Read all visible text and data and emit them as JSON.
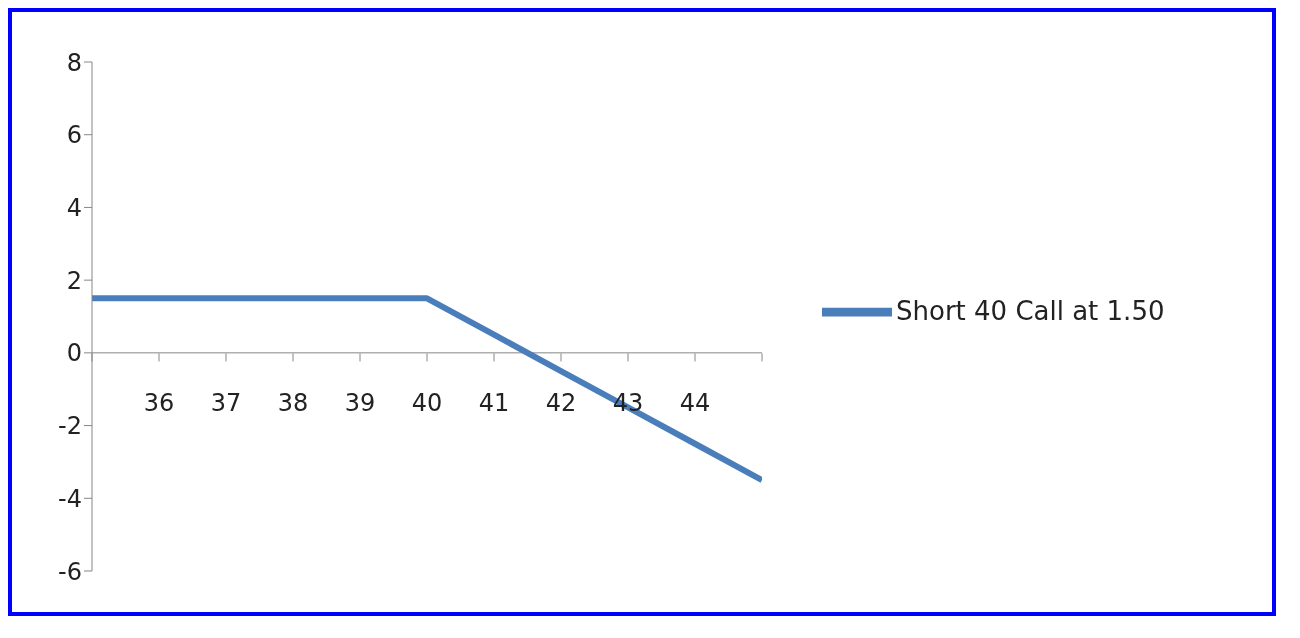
{
  "chart_data": {
    "type": "line",
    "x": [
      35,
      36,
      37,
      38,
      39,
      40,
      41,
      42,
      43,
      44,
      45
    ],
    "series": [
      {
        "name": "Short 40 Call at 1.50",
        "color": "#4a7ebb",
        "values": [
          1.5,
          1.5,
          1.5,
          1.5,
          1.5,
          1.5,
          0.5,
          -0.5,
          -1.5,
          -2.5,
          -3.5
        ]
      }
    ],
    "xlim": [
      35,
      45
    ],
    "xticks": [
      {
        "value": 35,
        "label": null
      },
      36,
      37,
      38,
      39,
      40,
      41,
      42,
      43,
      44,
      {
        "value": 45,
        "label": null
      }
    ],
    "ylim": [
      -6,
      8
    ],
    "yticks": [
      -6,
      -4,
      -2,
      0,
      2,
      4,
      6,
      8
    ],
    "grid": false,
    "legend": "right",
    "marker": "none",
    "line_style": "solid"
  }
}
